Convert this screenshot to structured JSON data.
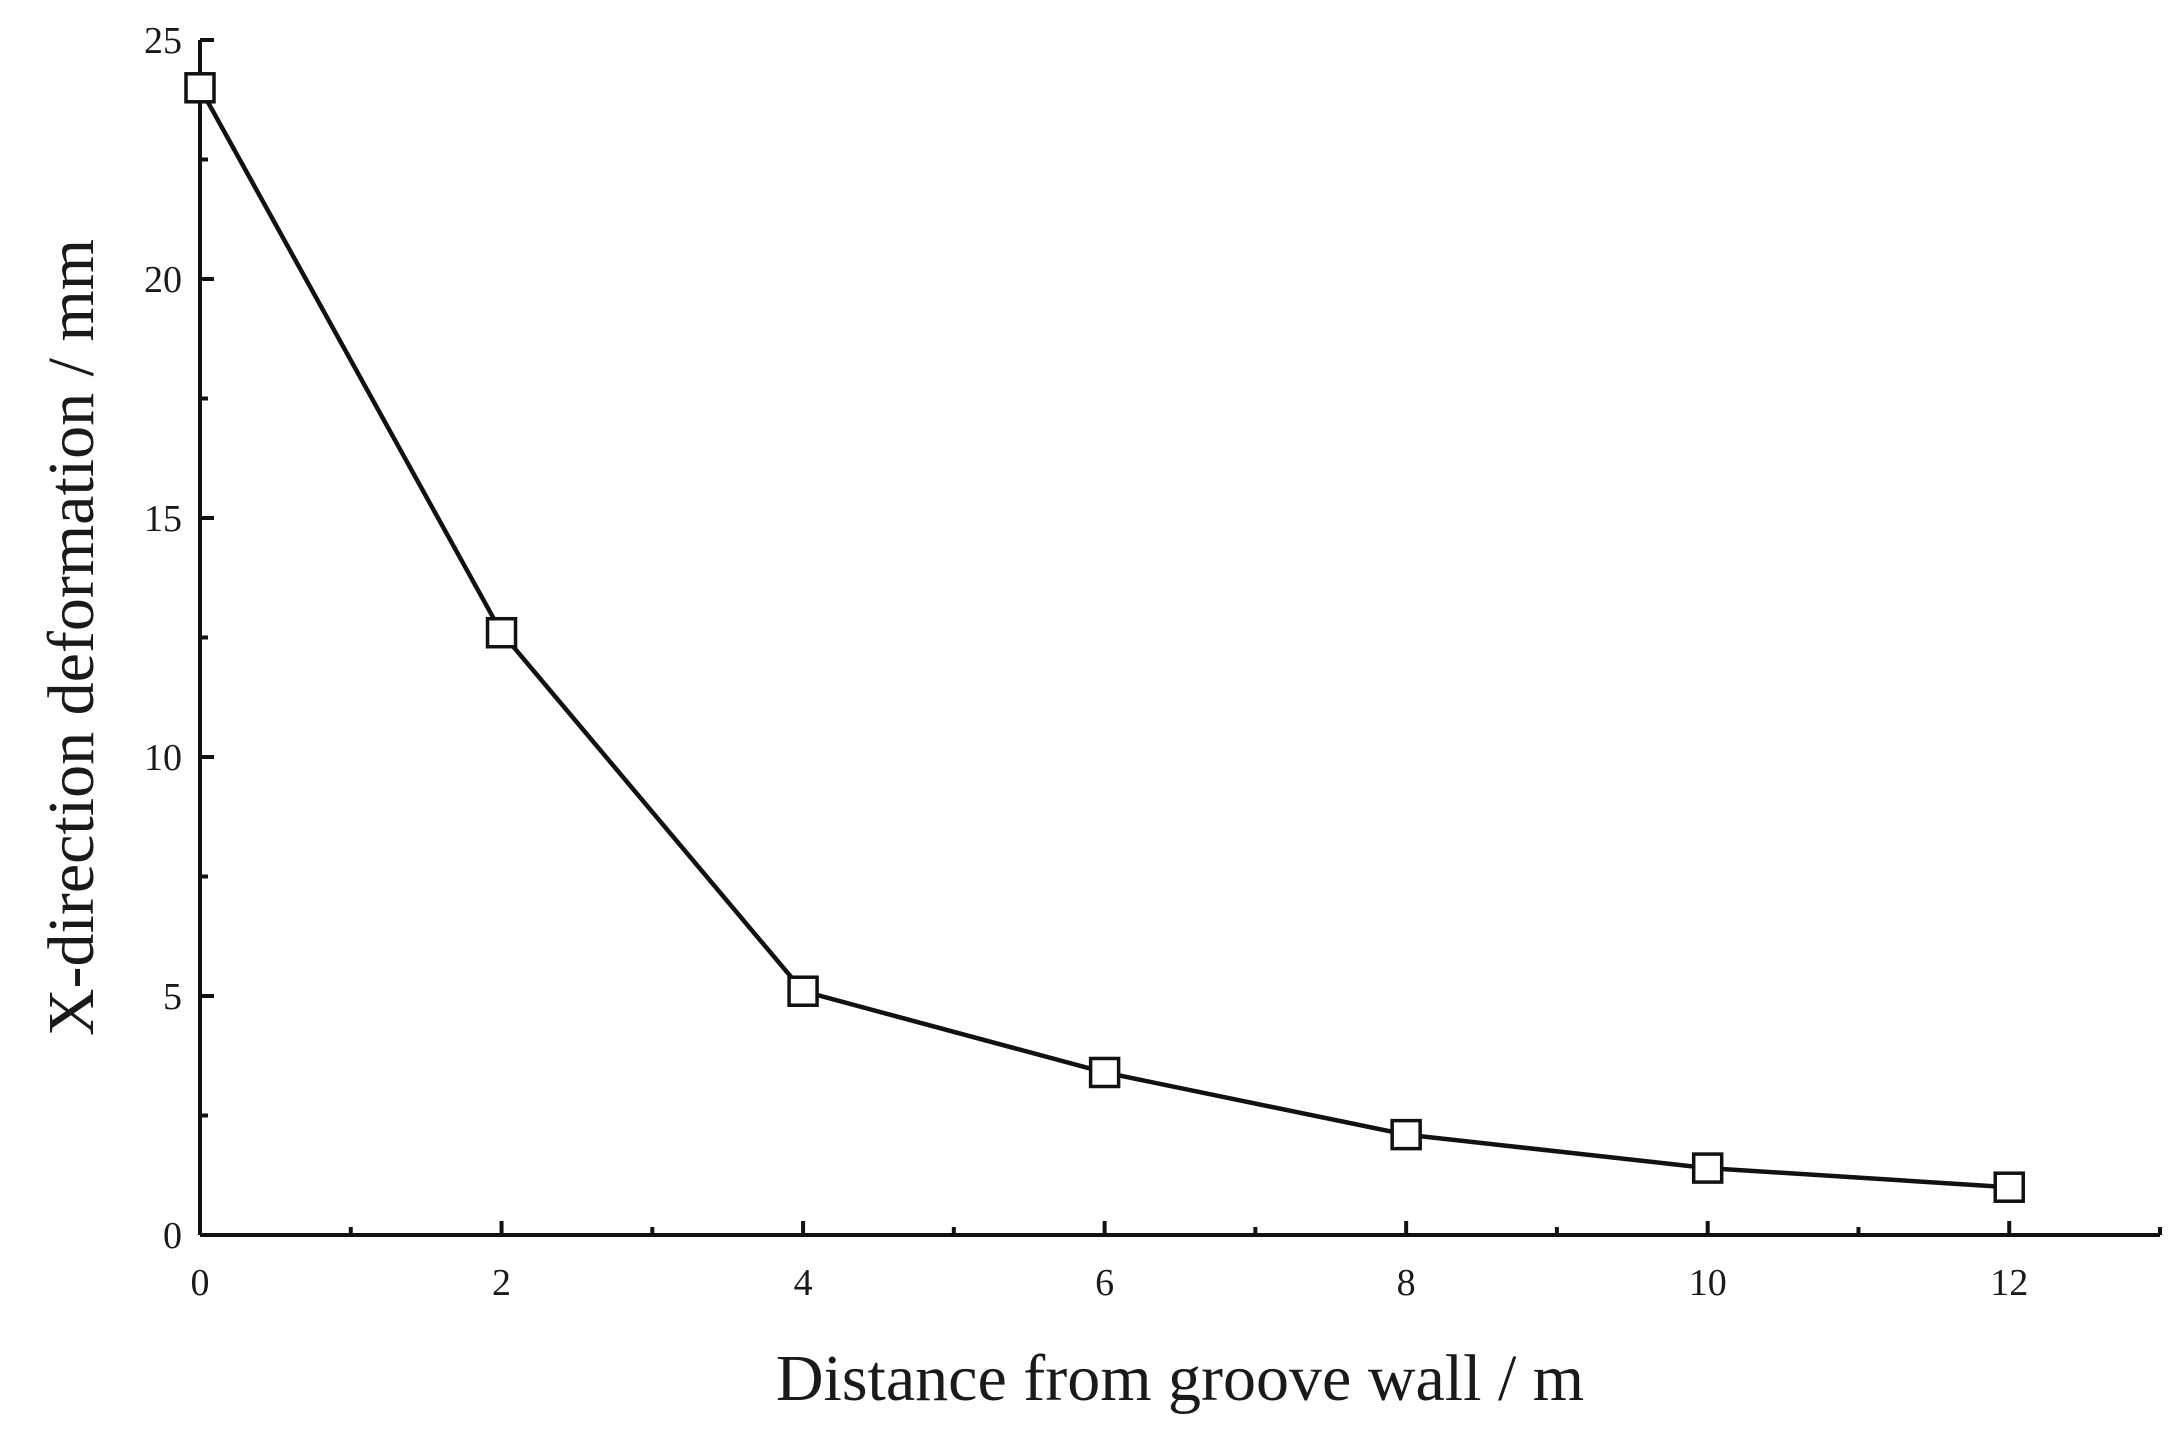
{
  "chart_data": {
    "type": "line",
    "title": "",
    "xlabel": "Distance from groove wall / m",
    "ylabel": "X-direction deformation / mm",
    "xlim": [
      0,
      13
    ],
    "ylim": [
      0,
      25
    ],
    "xticks": [
      0,
      2,
      4,
      6,
      8,
      10,
      12
    ],
    "yticks": [
      0,
      5,
      10,
      15,
      20,
      25
    ],
    "x_minor_step": 1,
    "y_minor_step": 2.5,
    "grid": false,
    "legend": "none",
    "series": [
      {
        "x": [
          0,
          2,
          4,
          6,
          8,
          10,
          12
        ],
        "values": [
          24.0,
          12.6,
          5.1,
          3.4,
          2.1,
          1.4,
          1.0
        ],
        "marker": "open-square",
        "color": "#111111"
      }
    ]
  }
}
